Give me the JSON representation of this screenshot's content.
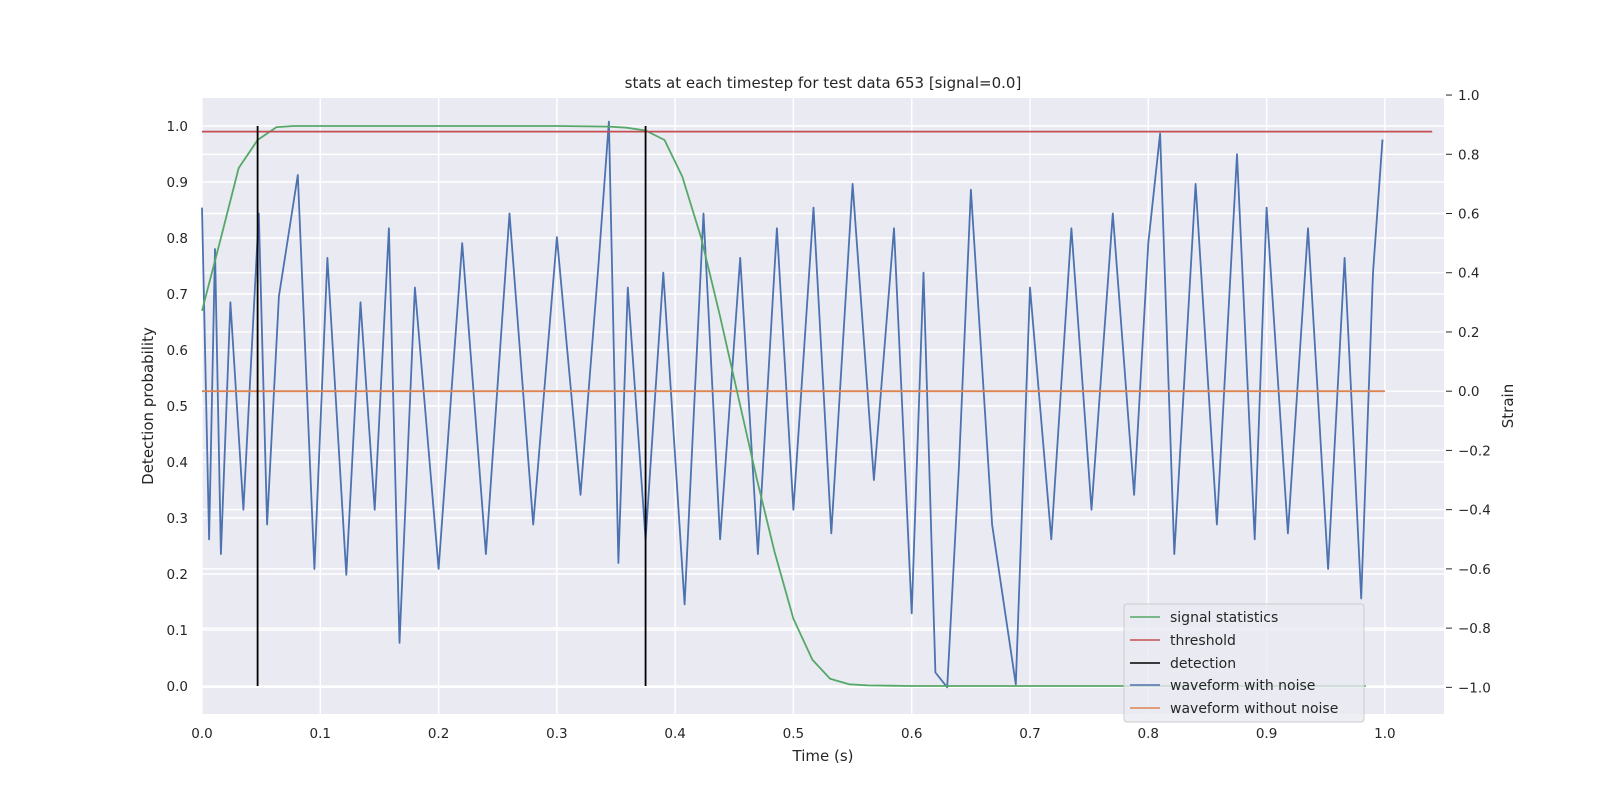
{
  "chart_data": {
    "type": "line",
    "title": "stats at each timestep for test data 653 [signal=0.0]",
    "xlabel": "Time (s)",
    "ylabel": "Detection probability",
    "y2label": "Strain",
    "xlim": [
      0.0,
      1.05
    ],
    "ylim": [
      -0.05,
      1.05
    ],
    "y2lim": [
      -1.09,
      0.99
    ],
    "xticks": [
      "0.0",
      "0.1",
      "0.2",
      "0.3",
      "0.4",
      "0.5",
      "0.6",
      "0.7",
      "0.8",
      "0.9",
      "1.0"
    ],
    "yticks": [
      "0.0",
      "0.1",
      "0.2",
      "0.3",
      "0.4",
      "0.5",
      "0.6",
      "0.7",
      "0.8",
      "0.9",
      "1.0"
    ],
    "y2ticks": [
      "−1.0",
      "−0.8",
      "−0.6",
      "−0.4",
      "−0.2",
      "0.0",
      "0.2",
      "0.4",
      "0.6",
      "0.8",
      "1.0"
    ],
    "grid": true,
    "legend_position": "lower-right",
    "colors": {
      "signal": "#55a868",
      "threshold": "#c44e52",
      "detection": "#000000",
      "noisy": "#4c72b0",
      "clean": "#dd8452",
      "axes_bg": "#eaeaf2",
      "grid": "#ffffff"
    },
    "series": [
      {
        "name": "signal statistics",
        "axis": "left",
        "x": [
          0.0,
          0.016,
          0.031,
          0.047,
          0.063,
          0.078,
          0.094,
          0.2,
          0.3,
          0.344,
          0.359,
          0.375,
          0.391,
          0.406,
          0.422,
          0.438,
          0.453,
          0.469,
          0.484,
          0.5,
          0.516,
          0.531,
          0.547,
          0.563,
          0.6,
          0.7,
          0.8,
          0.9,
          0.984
        ],
        "y": [
          0.67,
          0.8,
          0.925,
          0.975,
          0.998,
          1.0,
          1.0,
          1.0,
          1.0,
          0.999,
          0.997,
          0.992,
          0.975,
          0.91,
          0.8,
          0.66,
          0.52,
          0.37,
          0.24,
          0.12,
          0.047,
          0.013,
          0.003,
          0.001,
          0.0,
          0.0,
          0.0,
          0.0,
          0.0
        ]
      },
      {
        "name": "threshold",
        "axis": "left",
        "x": [
          0.0,
          1.04
        ],
        "y": [
          0.99,
          0.99
        ]
      },
      {
        "name": "detection",
        "axis": "left",
        "x": [
          0.047,
          0.375
        ],
        "y": [
          0.0,
          1.0
        ]
      },
      {
        "name": "waveform with noise",
        "axis": "right",
        "x": [
          0.0,
          0.006,
          0.011,
          0.016,
          0.024,
          0.035,
          0.048,
          0.055,
          0.065,
          0.081,
          0.095,
          0.106,
          0.122,
          0.134,
          0.146,
          0.158,
          0.167,
          0.18,
          0.2,
          0.22,
          0.24,
          0.26,
          0.28,
          0.3,
          0.32,
          0.335,
          0.344,
          0.352,
          0.36,
          0.375,
          0.39,
          0.408,
          0.424,
          0.438,
          0.455,
          0.47,
          0.486,
          0.5,
          0.517,
          0.532,
          0.55,
          0.568,
          0.585,
          0.6,
          0.61,
          0.62,
          0.63,
          0.64,
          0.65,
          0.668,
          0.688,
          0.7,
          0.718,
          0.735,
          0.752,
          0.77,
          0.788,
          0.8,
          0.81,
          0.822,
          0.84,
          0.858,
          0.875,
          0.89,
          0.9,
          0.918,
          0.935,
          0.952,
          0.966,
          0.98,
          0.99,
          0.998
        ],
        "y": [
          0.62,
          -0.5,
          0.48,
          -0.55,
          0.3,
          -0.4,
          0.6,
          -0.45,
          0.32,
          0.73,
          -0.6,
          0.45,
          -0.62,
          0.3,
          -0.4,
          0.55,
          -0.85,
          0.35,
          -0.6,
          0.5,
          -0.55,
          0.6,
          -0.45,
          0.52,
          -0.35,
          0.42,
          0.91,
          -0.58,
          0.35,
          -0.5,
          0.4,
          -0.72,
          0.6,
          -0.5,
          0.45,
          -0.55,
          0.55,
          -0.4,
          0.62,
          -0.48,
          0.7,
          -0.3,
          0.55,
          -0.75,
          0.4,
          -0.95,
          -1.0,
          -0.25,
          0.68,
          -0.45,
          -0.99,
          0.35,
          -0.5,
          0.55,
          -0.4,
          0.6,
          -0.35,
          0.5,
          0.87,
          -0.55,
          0.7,
          -0.45,
          0.8,
          -0.5,
          0.62,
          -0.48,
          0.55,
          -0.6,
          0.45,
          -0.7,
          0.4,
          0.85
        ]
      },
      {
        "name": "waveform without noise",
        "axis": "right",
        "x": [
          0.0,
          1.0
        ],
        "y": [
          0.0,
          0.0
        ]
      }
    ]
  }
}
